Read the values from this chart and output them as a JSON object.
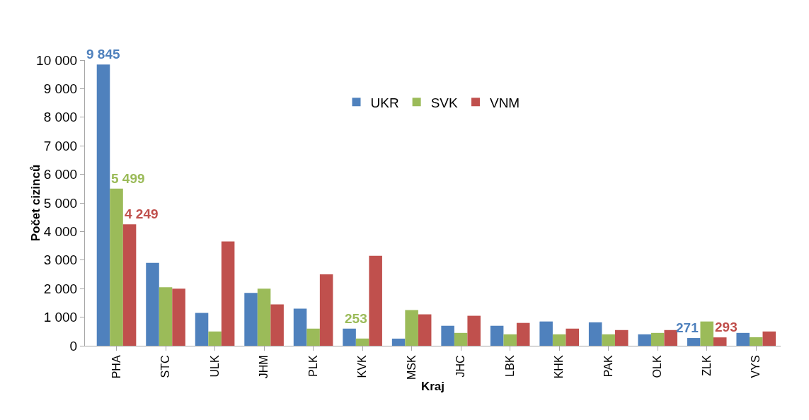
{
  "chart_data": {
    "type": "bar",
    "xlabel": "Kraj",
    "ylabel": "Počet cizinců",
    "categories": [
      "PHA",
      "STC",
      "ULK",
      "JHM",
      "PLK",
      "KVK",
      "MSK",
      "JHC",
      "LBK",
      "KHK",
      "PAK",
      "OLK",
      "ZLK",
      "VYS"
    ],
    "series": [
      {
        "name": "UKR",
        "color": "#4f81bd",
        "values": [
          9845,
          2900,
          1150,
          1850,
          1300,
          600,
          250,
          700,
          700,
          850,
          820,
          400,
          271,
          450
        ],
        "value_labels": [
          "9 845",
          null,
          null,
          null,
          null,
          null,
          null,
          null,
          null,
          null,
          null,
          null,
          "271",
          null
        ]
      },
      {
        "name": "SVK",
        "color": "#9bbb59",
        "values": [
          5499,
          2050,
          500,
          2000,
          600,
          253,
          1250,
          450,
          400,
          400,
          400,
          450,
          850,
          300
        ],
        "value_labels": [
          "5 499",
          null,
          null,
          null,
          null,
          "253",
          null,
          null,
          null,
          null,
          null,
          null,
          null,
          null
        ]
      },
      {
        "name": "VNM",
        "color": "#c0504d",
        "values": [
          4249,
          2000,
          3650,
          1450,
          2500,
          3150,
          1100,
          1050,
          800,
          600,
          550,
          550,
          293,
          500
        ],
        "value_labels": [
          "4 249",
          null,
          null,
          null,
          null,
          null,
          null,
          null,
          null,
          null,
          null,
          null,
          "293",
          null
        ]
      }
    ],
    "ylim": [
      0,
      10000
    ],
    "yticks": [
      {
        "value": 0,
        "label": "0"
      },
      {
        "value": 1000,
        "label": "1 000"
      },
      {
        "value": 2000,
        "label": "2 000"
      },
      {
        "value": 3000,
        "label": "3 000"
      },
      {
        "value": 4000,
        "label": "4 000"
      },
      {
        "value": 5000,
        "label": "5 000"
      },
      {
        "value": 6000,
        "label": "6 000"
      },
      {
        "value": 7000,
        "label": "7 000"
      },
      {
        "value": 8000,
        "label": "8 000"
      },
      {
        "value": 9000,
        "label": "9 000"
      },
      {
        "value": 10000,
        "label": "10 000"
      }
    ],
    "grid": false,
    "legend": "top"
  }
}
